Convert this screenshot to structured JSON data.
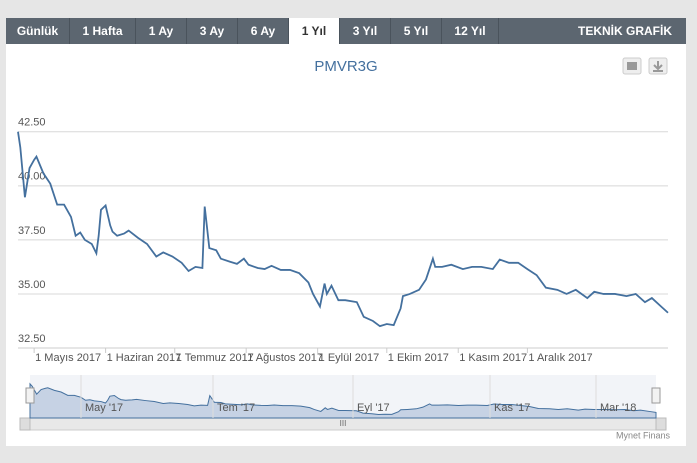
{
  "tabs": [
    "Günlük",
    "1 Hafta",
    "1 Ay",
    "3 Ay",
    "6 Ay",
    "1 Yıl",
    "3 Yıl",
    "5 Yıl",
    "12 Yıl"
  ],
  "active_tab": 5,
  "tech_link": "TEKNİK GRAFİK",
  "navigator": {
    "labels": [
      "May '17",
      "Tem '17",
      "Eyl '17",
      "Kas '17",
      "Mar '18"
    ]
  },
  "credit": "Mynet Finans",
  "chart_data": {
    "type": "line",
    "title": "PMVR3G",
    "x": [
      "2017-04-24",
      "2017-04-25",
      "2017-04-27",
      "2017-04-29",
      "2017-05-01",
      "2017-05-02",
      "2017-05-05",
      "2017-05-08",
      "2017-05-11",
      "2017-05-14",
      "2017-05-17",
      "2017-05-19",
      "2017-05-21",
      "2017-05-23",
      "2017-05-26",
      "2017-05-28",
      "2017-05-29",
      "2017-05-30",
      "2017-06-01",
      "2017-06-03",
      "2017-06-04",
      "2017-06-06",
      "2017-06-09",
      "2017-06-11",
      "2017-06-15",
      "2017-06-19",
      "2017-06-23",
      "2017-06-26",
      "2017-06-30",
      "2017-07-04",
      "2017-07-07",
      "2017-07-10",
      "2017-07-13",
      "2017-07-14",
      "2017-07-16",
      "2017-07-19",
      "2017-07-21",
      "2017-07-25",
      "2017-07-28",
      "2017-07-31",
      "2017-08-02",
      "2017-08-06",
      "2017-08-09",
      "2017-08-12",
      "2017-08-16",
      "2017-08-20",
      "2017-08-24",
      "2017-08-28",
      "2017-08-30",
      "2017-09-02",
      "2017-09-04",
      "2017-09-05",
      "2017-09-07",
      "2017-09-10",
      "2017-09-13",
      "2017-09-18",
      "2017-09-21",
      "2017-09-25",
      "2017-09-28",
      "2017-10-01",
      "2017-10-04",
      "2017-10-07",
      "2017-10-08",
      "2017-10-11",
      "2017-10-15",
      "2017-10-18",
      "2017-10-21",
      "2017-10-22",
      "2017-10-25",
      "2017-10-29",
      "2017-11-03",
      "2017-11-07",
      "2017-11-11",
      "2017-11-16",
      "2017-11-19",
      "2017-11-23",
      "2017-11-27",
      "2017-12-01",
      "2017-12-05",
      "2017-12-09",
      "2017-12-14",
      "2017-12-18",
      "2017-12-22",
      "2017-12-27",
      "2017-12-30",
      "2018-01-03",
      "2018-01-08",
      "2018-01-13",
      "2018-01-17",
      "2018-01-21",
      "2018-01-24",
      "2018-01-28",
      "2018-01-31"
    ],
    "series": [
      {
        "name": "PMVR3G",
        "color": "#44709e",
        "values": [
          42.5,
          41.78,
          39.47,
          40.82,
          41.2,
          41.35,
          40.58,
          40.1,
          39.13,
          39.13,
          38.56,
          37.69,
          37.84,
          37.5,
          37.31,
          36.88,
          37.69,
          38.89,
          39.09,
          38.17,
          37.88,
          37.69,
          37.79,
          37.93,
          37.6,
          37.31,
          36.73,
          36.92,
          36.73,
          36.44,
          36.06,
          36.25,
          36.2,
          39.04,
          37.12,
          37.02,
          36.63,
          36.49,
          36.39,
          36.63,
          36.35,
          36.2,
          36.15,
          36.3,
          36.11,
          36.11,
          35.96,
          35.53,
          35.0,
          34.42,
          35.48,
          35.0,
          35.38,
          34.71,
          34.71,
          34.62,
          33.94,
          33.75,
          33.51,
          33.61,
          33.56,
          34.33,
          34.9,
          35.0,
          35.19,
          35.67,
          36.63,
          36.25,
          36.25,
          36.35,
          36.15,
          36.25,
          36.25,
          36.15,
          36.59,
          36.44,
          36.44,
          36.15,
          35.87,
          35.29,
          35.19,
          35.0,
          35.19,
          34.81,
          35.1,
          35.0,
          35.0,
          34.9,
          35.0,
          34.62,
          34.81,
          34.42,
          34.13
        ]
      }
    ],
    "xlim": [
      "2017-04-24",
      "2018-01-31"
    ],
    "xticks": [
      {
        "value": "2017-05-01",
        "label": "1 Mayıs 2017"
      },
      {
        "value": "2017-06-01",
        "label": "1 Haziran 2017"
      },
      {
        "value": "2017-07-01",
        "label": "1 Temmuz 2017"
      },
      {
        "value": "2017-08-01",
        "label": "1 Ağustos 2017"
      },
      {
        "value": "2017-09-01",
        "label": "1 Eylül 2017"
      },
      {
        "value": "2017-10-01",
        "label": "1 Ekim 2017"
      },
      {
        "value": "2017-11-01",
        "label": "1 Kasım 2017"
      },
      {
        "value": "2017-12-01",
        "label": "1 Aralık 2017"
      }
    ],
    "ylim": [
      32.5,
      44.2
    ],
    "yticks": [
      {
        "value": 32.5,
        "label": "32.50"
      },
      {
        "value": 35,
        "label": "35.00"
      },
      {
        "value": 37.5,
        "label": "37.50"
      },
      {
        "value": 40,
        "label": "40.00"
      },
      {
        "value": 42.5,
        "label": "42.50"
      }
    ],
    "grid": true
  }
}
